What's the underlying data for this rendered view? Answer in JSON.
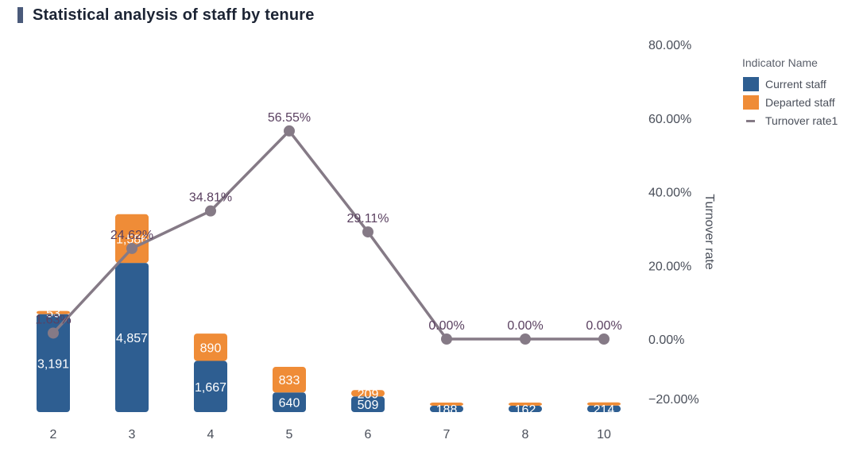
{
  "header": {
    "title": "Statistical analysis of staff by tenure"
  },
  "colors": {
    "current": "#2e5e91",
    "departed": "#ef8c37",
    "line": "#857a86",
    "header_bar": "#4a5a7a"
  },
  "chart_data": {
    "type": "bar",
    "title": "Statistical analysis of staff by tenure",
    "xlabel": "",
    "ylabel": "",
    "y2label": "Turnover rate",
    "categories": [
      "2",
      "3",
      "4",
      "5",
      "6",
      "7",
      "8",
      "10"
    ],
    "series": [
      {
        "name": "Current staff",
        "type": "bar",
        "stack": "staff",
        "values": [
          3191,
          4857,
          1667,
          640,
          509,
          188,
          162,
          214
        ],
        "labels": [
          "3,191",
          "4,857",
          "1,667",
          "640",
          "509",
          "188",
          "162",
          "214"
        ]
      },
      {
        "name": "Departed staff",
        "type": "bar",
        "stack": "staff",
        "values": [
          53,
          1586,
          890,
          833,
          209,
          0,
          0,
          0
        ],
        "labels": [
          "53",
          "1,586",
          "890",
          "833",
          "209",
          "",
          "",
          ""
        ]
      },
      {
        "name": "Turnover rate1",
        "type": "line",
        "axis": "right",
        "values": [
          1.63,
          24.62,
          34.81,
          56.55,
          29.11,
          0.0,
          0.0,
          0.0
        ],
        "labels": [
          "1.63%",
          "24.62%",
          "34.81%",
          "56.55%",
          "29.11%",
          "0.00%",
          "0.00%",
          "0.00%"
        ]
      }
    ],
    "y2_ticks": [
      "80.00%",
      "60.00%",
      "40.00%",
      "20.00%",
      "0.00%",
      "−20.00%"
    ],
    "y2_tick_values": [
      80,
      60,
      40,
      20,
      0,
      -20
    ],
    "y2lim": [
      -20,
      80
    ],
    "legend": {
      "title": "Indicator Name",
      "position": "top-right",
      "items": [
        "Current staff",
        "Departed staff",
        "Turnover rate1"
      ]
    }
  }
}
